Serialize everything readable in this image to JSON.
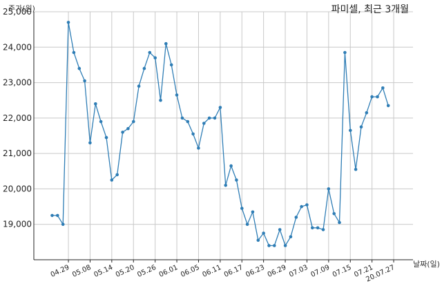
{
  "chart_data": {
    "type": "line",
    "title": "파미셀, 최근 3개월",
    "ylabel": "주가(원)",
    "xlabel": "날짜(일)",
    "ylim": [
      18000,
      25000
    ],
    "yticks": [
      19000,
      20000,
      21000,
      22000,
      23000,
      24000,
      25000
    ],
    "ytick_labels": [
      "19,000",
      "20,000",
      "21,000",
      "22,000",
      "23,000",
      "24,000",
      "25,000"
    ],
    "xtick_labels": [
      "04.29",
      "05.08",
      "05.14",
      "05.20",
      "05.26",
      "06.01",
      "06.05",
      "06.11",
      "06.17",
      "06.23",
      "06.29",
      "07.03",
      "07.09",
      "07.15",
      "07.21",
      "20.07.27"
    ],
    "xtick_positions": [
      3,
      7,
      11,
      15,
      19,
      23,
      27,
      31,
      35,
      39,
      43,
      47,
      51,
      55,
      59,
      63
    ],
    "grid": true,
    "color": "#2e7db5",
    "series": [
      {
        "values": [
          19250,
          19250,
          19000,
          24700,
          23850,
          23400,
          23050,
          21300,
          22400,
          21900,
          21450,
          20250,
          20400,
          21600,
          21700,
          21900,
          22900,
          23400,
          23850,
          23700,
          22500,
          24100,
          23500,
          22650,
          22000,
          21900,
          21550,
          21150,
          21850,
          22000,
          22000,
          22300,
          20100,
          20650,
          20250,
          19450,
          19000,
          19350,
          18550,
          18750,
          18400,
          18400,
          18850,
          18400,
          18650,
          19200,
          19500,
          19550,
          18900,
          18900,
          18850,
          20000,
          19300,
          19050,
          23850,
          21650,
          20550,
          21750,
          22150,
          22600,
          22600,
          22850,
          22350
        ]
      }
    ]
  }
}
